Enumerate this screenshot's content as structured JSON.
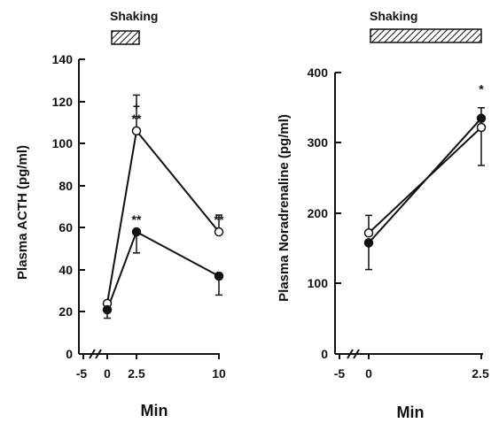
{
  "chart_data": [
    {
      "type": "line",
      "ylabel": "Plasma ACTH (pg/ml)",
      "xlabel": "Min",
      "ylim": [
        0,
        140
      ],
      "yticks": [
        0,
        20,
        40,
        60,
        80,
        100,
        120,
        140
      ],
      "xticks": [
        "-5",
        "0",
        "2.5",
        "10"
      ],
      "x": [
        0,
        2.5,
        10
      ],
      "shaking_label": "Shaking",
      "shaking_interval": [
        0,
        2.5
      ],
      "series": [
        {
          "marker": "open",
          "values": [
            24,
            106,
            58
          ],
          "errors": [
            0,
            17,
            8
          ]
        },
        {
          "marker": "filled",
          "values": [
            21,
            58,
            37
          ],
          "errors": [
            4,
            10,
            9
          ]
        }
      ],
      "annotations": [
        {
          "x": 2.5,
          "y": 106,
          "text": "**"
        },
        {
          "x": 2.5,
          "y": 106,
          "text": "+"
        },
        {
          "x": 2.5,
          "y": 58,
          "text": "**"
        },
        {
          "x": 10,
          "y": 58,
          "text": "**"
        }
      ]
    },
    {
      "type": "line",
      "ylabel": "Plasma Noradrenaline (pg/ml)",
      "xlabel": "Min",
      "ylim": [
        0,
        400
      ],
      "yticks": [
        0,
        100,
        200,
        300,
        400
      ],
      "xticks": [
        "-5",
        "0",
        "2.5"
      ],
      "x": [
        0,
        2.5
      ],
      "shaking_label": "Shaking",
      "shaking_interval": [
        0,
        2.5
      ],
      "series": [
        {
          "marker": "open",
          "values": [
            172,
            322
          ],
          "errors": [
            25,
            28
          ]
        },
        {
          "marker": "filled",
          "values": [
            158,
            335
          ],
          "errors": [
            38,
            67
          ]
        }
      ],
      "annotations": [
        {
          "x": 2.5,
          "y": 335,
          "text": "*"
        }
      ]
    }
  ]
}
